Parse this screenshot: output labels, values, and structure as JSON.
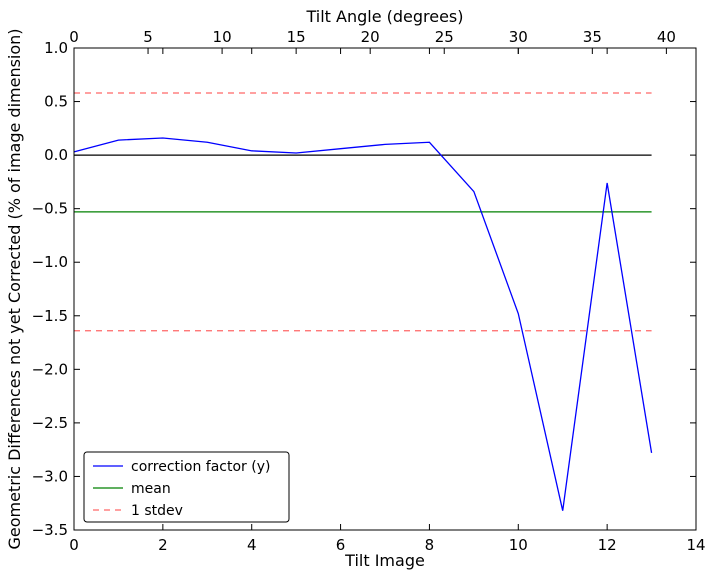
{
  "chart_data": {
    "type": "line",
    "xlabel": "Tilt Image",
    "ylabel": "Geometric Differences not yet Corrected (% of image dimension)",
    "x2label": "Tilt Angle (degrees)",
    "xlim": [
      0,
      14
    ],
    "ylim": [
      -3.5,
      1.0
    ],
    "x2lim": [
      0,
      42
    ],
    "xticks": [
      0,
      2,
      4,
      6,
      8,
      10,
      12,
      14
    ],
    "yticks": [
      -3.5,
      -3.0,
      -2.5,
      -2.0,
      -1.5,
      -1.0,
      -0.5,
      0.0,
      0.5,
      1.0
    ],
    "x2ticks": [
      0,
      5,
      10,
      15,
      20,
      25,
      30,
      35,
      40
    ],
    "xtick_labels": [
      "0",
      "2",
      "4",
      "6",
      "8",
      "10",
      "12",
      "14"
    ],
    "ytick_labels": [
      "−3.5",
      "−3.0",
      "−2.5",
      "−2.0",
      "−1.5",
      "−1.0",
      "−0.5",
      "0.0",
      "0.5",
      "1.0"
    ],
    "x2tick_labels": [
      "0",
      "5",
      "10",
      "15",
      "20",
      "25",
      "30",
      "35",
      "40"
    ],
    "grid": false,
    "legend_position": "bottom-left",
    "series": [
      {
        "name": "correction factor (y)",
        "color": "#0000ff",
        "style": "solid",
        "x": [
          0,
          1,
          2,
          3,
          4,
          5,
          6,
          7,
          8,
          9,
          10,
          11,
          12,
          13
        ],
        "y": [
          0.03,
          0.14,
          0.16,
          0.12,
          0.04,
          0.02,
          0.06,
          0.1,
          0.12,
          -0.34,
          -1.48,
          -3.32,
          -0.26,
          -2.78
        ]
      },
      {
        "name": "mean",
        "color": "#008000",
        "style": "solid",
        "x": [
          0,
          13
        ],
        "y": [
          -0.53,
          -0.53
        ]
      },
      {
        "name": "1 stdev",
        "color": "#ff0000",
        "style": "dashed",
        "x": [
          0,
          13
        ],
        "y": [
          0.58,
          0.58
        ]
      },
      {
        "name": "",
        "color": "#ff0000",
        "style": "dashed",
        "x": [
          0,
          13
        ],
        "y": [
          -1.64,
          -1.64
        ]
      },
      {
        "name": "",
        "color": "#000000",
        "style": "solid",
        "x": [
          0,
          13
        ],
        "y": [
          0.0,
          0.0
        ]
      }
    ],
    "legend": [
      {
        "label": "correction factor (y)",
        "color": "#0000ff",
        "style": "solid"
      },
      {
        "label": "mean",
        "color": "#008000",
        "style": "solid"
      },
      {
        "label": "1 stdev",
        "color": "#ff0000",
        "style": "dashed"
      }
    ]
  }
}
